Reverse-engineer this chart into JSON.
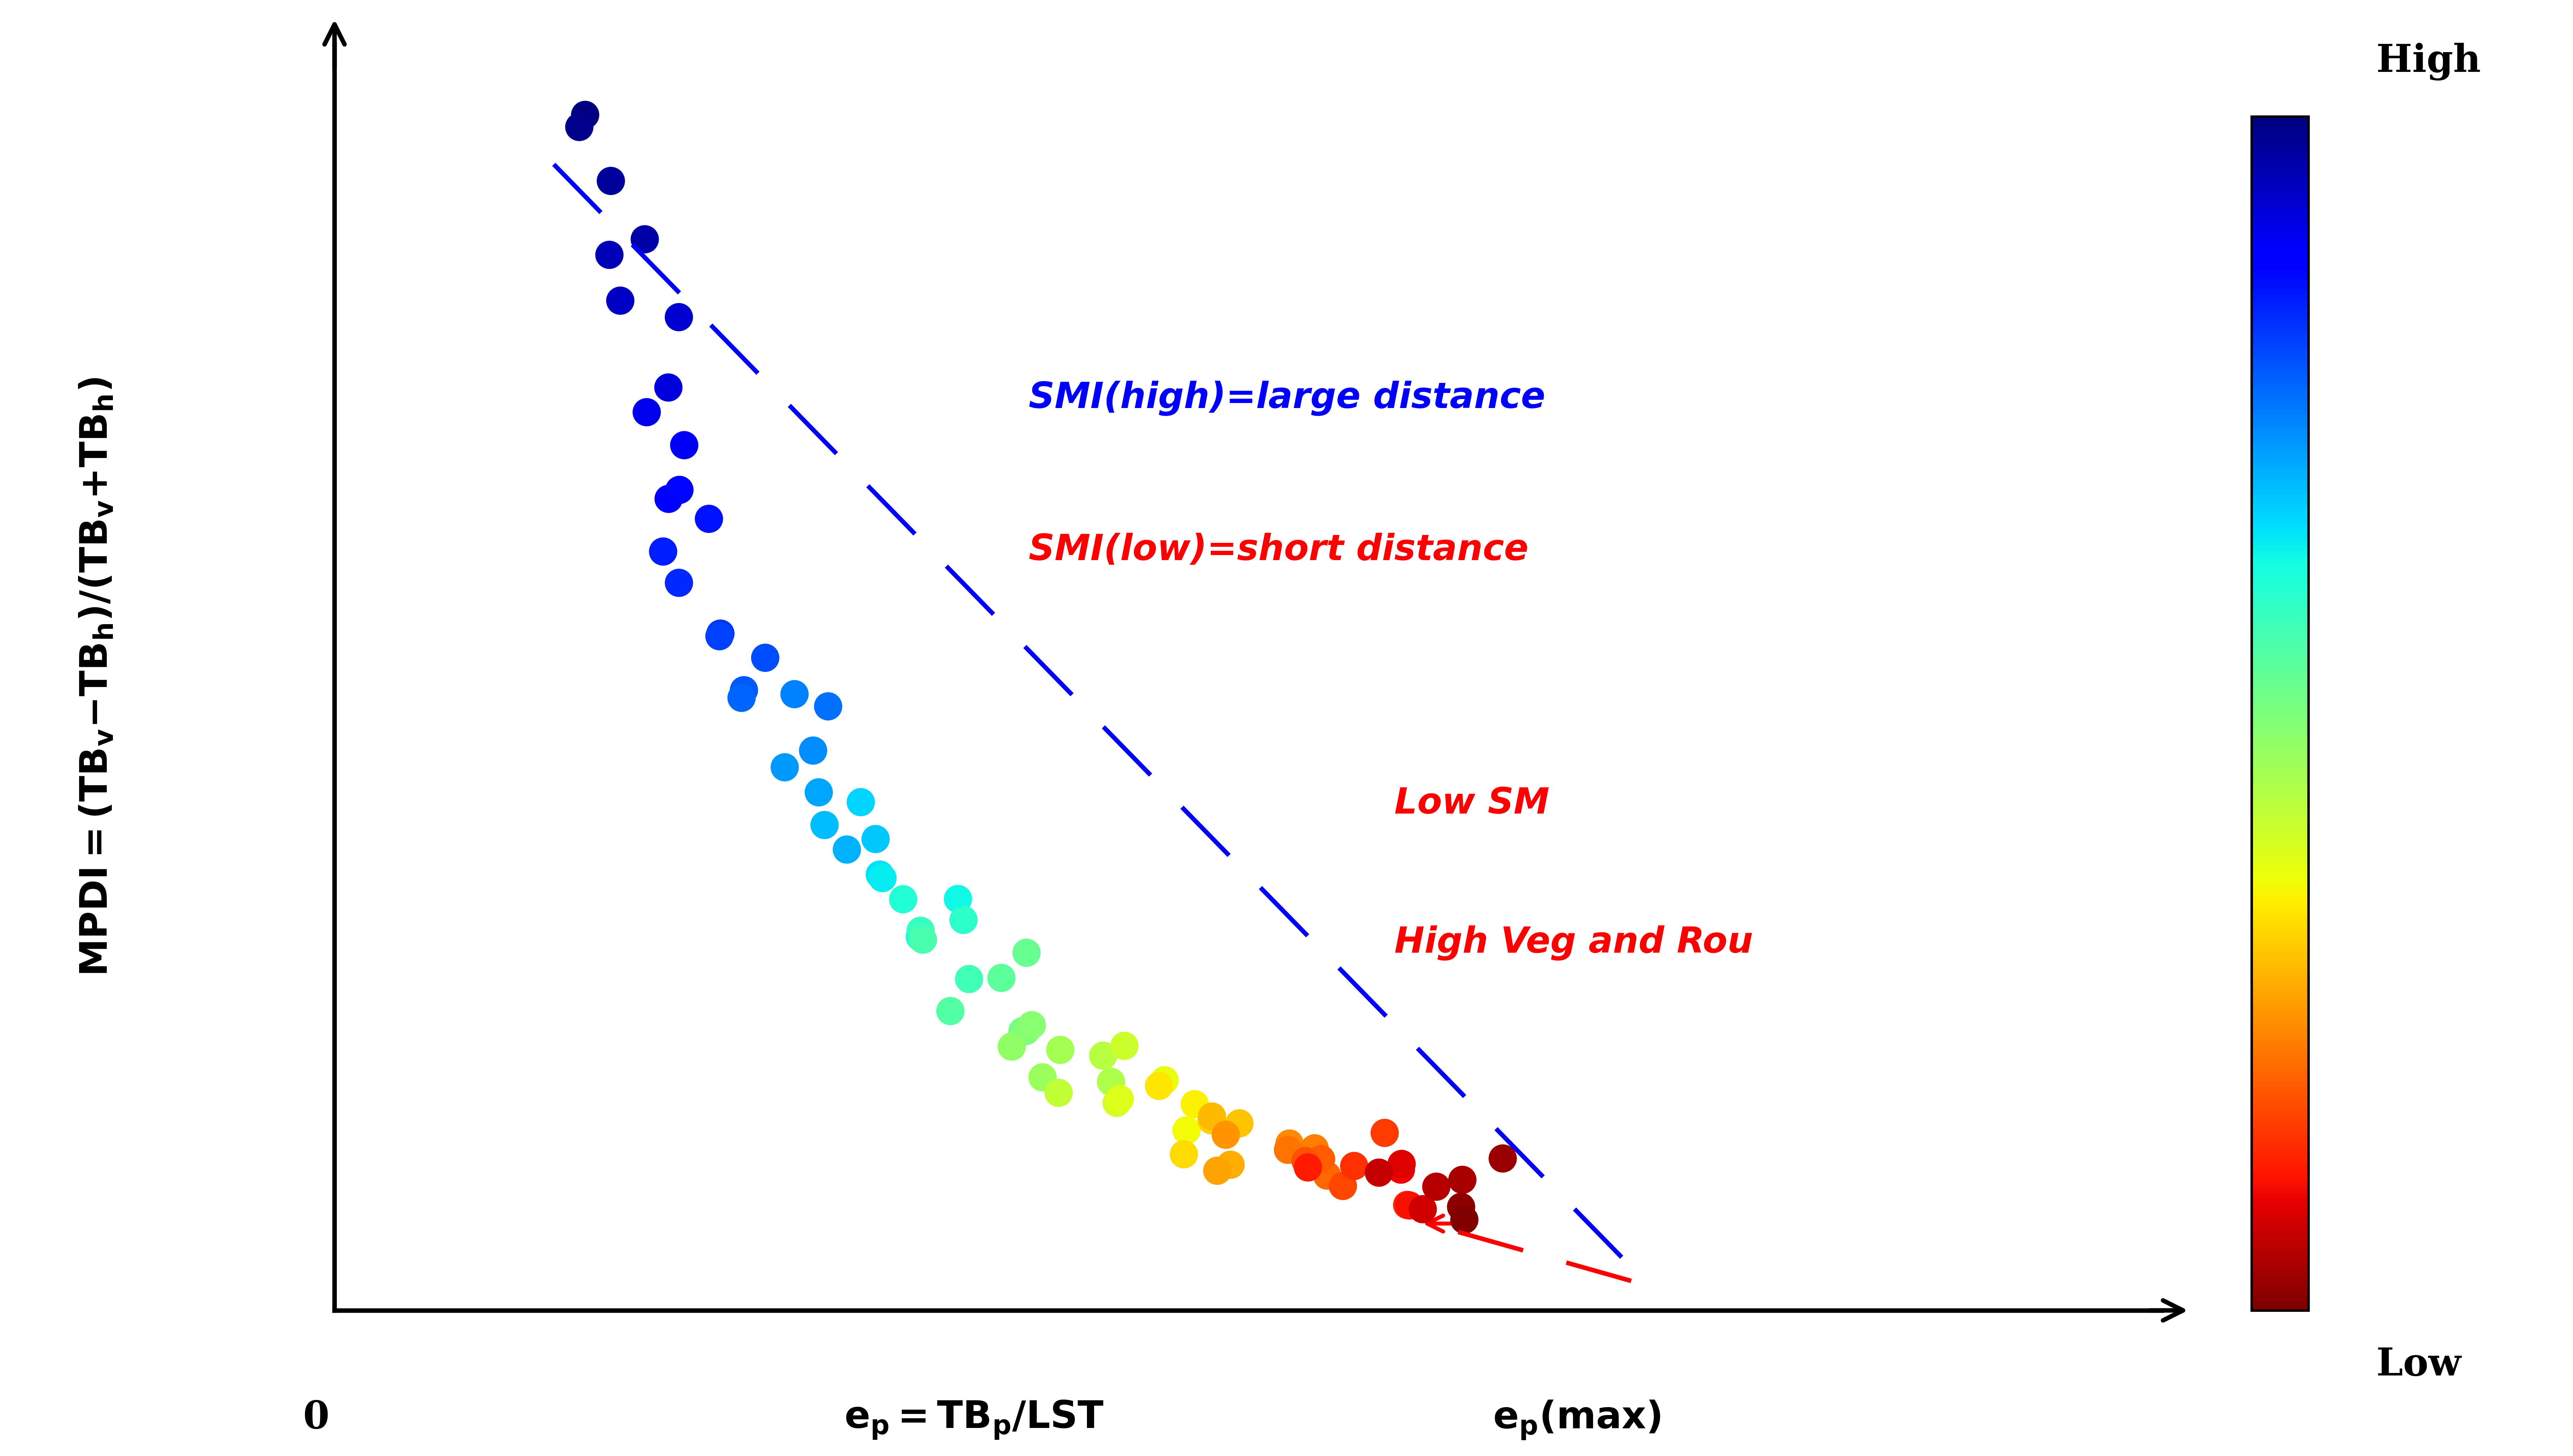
{
  "fig_width": 71.57,
  "fig_height": 40.5,
  "dpi": 100,
  "background_color": "#ffffff",
  "scatter_n_points": 85,
  "scatter_size": 3200,
  "axis_linewidth": 9,
  "plot_xlim": [
    0,
    1.0
  ],
  "plot_ylim": [
    0,
    1.05
  ],
  "colorbar_label_high": "High",
  "colorbar_label_low": "Low"
}
